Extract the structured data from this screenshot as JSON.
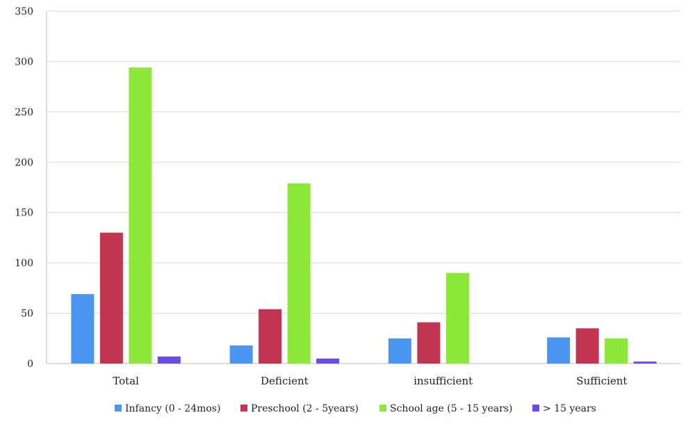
{
  "chart_data": {
    "type": "bar",
    "categories": [
      "Total",
      "Deficient",
      "insufficient",
      "Sufficient"
    ],
    "series": [
      {
        "name": "Infancy (0 - 24mos)",
        "color": "#4a96f0",
        "values": [
          69,
          18,
          25,
          26
        ]
      },
      {
        "name": "Preschool (2 - 5years)",
        "color": "#c13452",
        "values": [
          130,
          54,
          41,
          35
        ]
      },
      {
        "name": "School age (5 - 15 years)",
        "color": "#8ee83c",
        "values": [
          294,
          179,
          90,
          25
        ]
      },
      {
        "name": "> 15 years",
        "color": "#6a4be6",
        "values": [
          7,
          5,
          0,
          2
        ]
      }
    ],
    "ylim": [
      0,
      350
    ],
    "yticks": [
      0,
      50,
      100,
      150,
      200,
      250,
      300,
      350
    ],
    "grid": true,
    "legend": "bottom"
  }
}
